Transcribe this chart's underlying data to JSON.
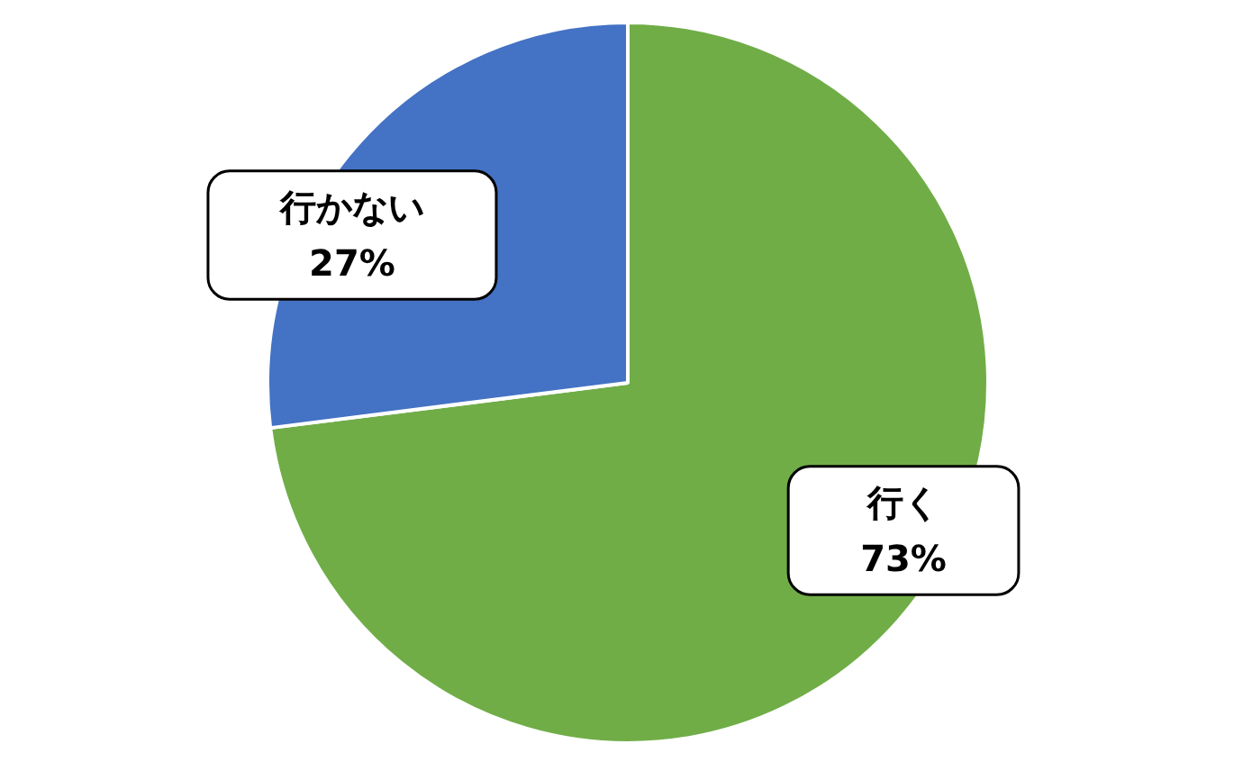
{
  "chart_data": {
    "type": "pie",
    "categories": [
      "行く",
      "行かない"
    ],
    "values": [
      73,
      27
    ],
    "colors": [
      "#70ad47",
      "#4472c4"
    ],
    "value_labels": [
      "73%",
      "27%"
    ]
  }
}
